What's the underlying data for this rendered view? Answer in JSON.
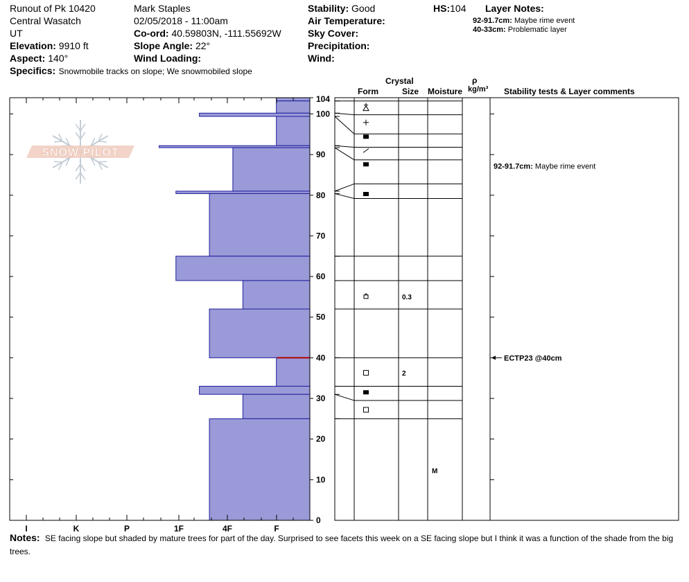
{
  "header": {
    "col1": {
      "location": "Runout of Pk 10420",
      "range": "Central Wasatch",
      "state": "UT",
      "elevation_label": "Elevation:",
      "elevation": "9910 ft",
      "aspect_label": "Aspect:",
      "aspect": "140°"
    },
    "col2": {
      "observer": "Mark Staples",
      "datetime": "02/05/2018 - 11:00am",
      "coord_label": "Co-ord:",
      "coord": "40.59803N, -111.55692W",
      "slope_label": "Slope Angle:",
      "slope": "22°",
      "wind_loading_label": "Wind Loading:",
      "wind_loading": ""
    },
    "col3": {
      "stability_label": "Stability:",
      "stability": "Good",
      "air_temp_label": "Air Temperature:",
      "sky_label": "Sky Cover:",
      "precip_label": "Precipitation:",
      "wind_label": "Wind:"
    },
    "hs_label": "HS:",
    "hs": "104",
    "layer_notes_label": "Layer Notes:",
    "layer_notes": [
      {
        "range": "92-91.7cm:",
        "text": "Maybe rime event"
      },
      {
        "range": "40-33cm:",
        "text": "Problematic layer"
      }
    ],
    "specifics_label": "Specifics:",
    "specifics": "Snowmobile tracks on slope; We snowmobiled slope"
  },
  "logo_text": "SNOW PILOT",
  "table_headers": {
    "crystal": "Crystal",
    "form": "Form",
    "size": "Size",
    "moisture": "Moisture",
    "rho": "ρ",
    "density_unit": "kg/m³",
    "stability": "Stability tests & Layer comments"
  },
  "notes_label": "Notes:",
  "notes": "SE facing slope but shaded by mature trees for part of the day. Surprised to see facets this week on a SE facing slope but I think it was a function of the shade from the big trees.",
  "chart_data": {
    "type": "bar",
    "orientation": "horizontal",
    "x_axis": "hand hardness",
    "x_tick_labels": [
      "I",
      "K",
      "P",
      "1F",
      "4F",
      "F"
    ],
    "y_axis": "height (cm)",
    "y_ticks": [
      0,
      10,
      20,
      30,
      40,
      50,
      60,
      70,
      80,
      90,
      100,
      104
    ],
    "ylim": [
      0,
      104
    ],
    "hardness_scale_note": "hardness index values: F=1, 4F=2, 1F=3, P=4, K=5, I=6",
    "layers": [
      {
        "top": 104,
        "bottom": 103.2,
        "hardness": 1
      },
      {
        "top": 103.2,
        "bottom": 100.2,
        "hardness": 1
      },
      {
        "top": 100.2,
        "bottom": 99.4,
        "hardness": 3.3
      },
      {
        "top": 99.4,
        "bottom": 92.2,
        "hardness": 1
      },
      {
        "top": 92.2,
        "bottom": 91.7,
        "hardness": 4.5
      },
      {
        "top": 91.7,
        "bottom": 81,
        "hardness": 2.3
      },
      {
        "top": 81,
        "bottom": 80.4,
        "hardness": 4
      },
      {
        "top": 80.4,
        "bottom": 65,
        "hardness": 3
      },
      {
        "top": 65,
        "bottom": 59,
        "hardness": 4
      },
      {
        "top": 59,
        "bottom": 52,
        "hardness": 2
      },
      {
        "top": 52,
        "bottom": 40,
        "hardness": 3
      },
      {
        "top": 40,
        "bottom": 33,
        "hardness": 1
      },
      {
        "top": 33,
        "bottom": 31,
        "hardness": 3.3
      },
      {
        "top": 31,
        "bottom": 25,
        "hardness": 2
      },
      {
        "top": 25,
        "bottom": 0,
        "hardness": 3
      }
    ],
    "problem_layer_line": 40,
    "grid_rows": [
      104,
      103.2,
      99.8,
      95.1,
      91.8,
      88.7,
      82.8,
      79.2,
      65,
      59,
      52,
      40,
      33,
      29.5,
      25
    ],
    "crystal_forms": [
      {
        "y": 101.5,
        "symbol": "precip-particle"
      },
      {
        "y": 97.9,
        "symbol": "decomposing-fragmented"
      },
      {
        "y": 94.4,
        "symbol": "rounded-grains"
      },
      {
        "y": 91,
        "symbol": "rime-crust"
      },
      {
        "y": 87.6,
        "symbol": "rounded-grains"
      },
      {
        "y": 80.3,
        "symbol": "rounded-grains"
      },
      {
        "y": 55.1,
        "symbol": "faceted-rounded",
        "size": "0.3"
      },
      {
        "y": 36.3,
        "symbol": "faceted-crystals",
        "size": "2"
      },
      {
        "y": 31.5,
        "symbol": "rounded-grains"
      },
      {
        "y": 27.2,
        "symbol": "faceted-crystals"
      }
    ],
    "moisture": [
      {
        "y": 12.3,
        "label": "M"
      }
    ],
    "layer_comments": [
      {
        "y": 87.2,
        "range": "92-91.7cm:",
        "text": "Maybe rime event"
      }
    ],
    "stability_tests": [
      {
        "y": 40,
        "text": "ECTP23 @40cm"
      }
    ]
  }
}
